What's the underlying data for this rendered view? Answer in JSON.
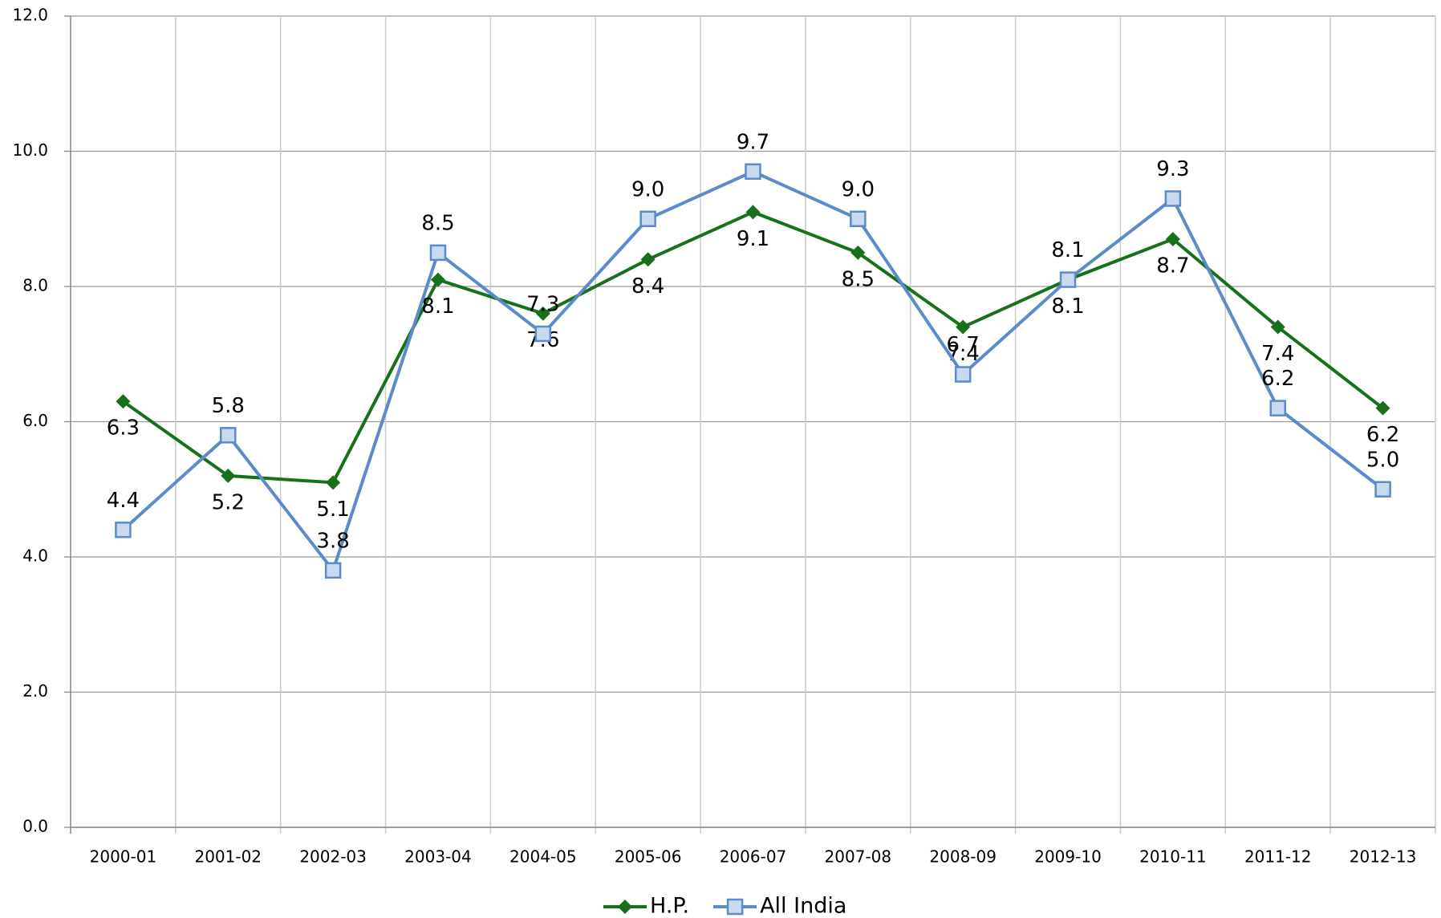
{
  "chart_data": {
    "type": "line",
    "categories": [
      "2000-01",
      "2001-02",
      "2002-03",
      "2003-04",
      "2004-05",
      "2005-06",
      "2006-07",
      "2007-08",
      "2008-09",
      "2009-10",
      "2010-11",
      "2011-12",
      "2012-13"
    ],
    "series": [
      {
        "name": "H.P.",
        "color": "#17701a",
        "marker": "diamond",
        "values": [
          6.3,
          5.2,
          5.1,
          8.1,
          7.6,
          8.4,
          9.1,
          8.5,
          7.4,
          8.1,
          8.7,
          7.4,
          6.2
        ],
        "value_labels": [
          "6.3",
          "5.2",
          "5.1",
          "8.1",
          "7.6",
          "8.4",
          "9.1",
          "8.5",
          "7.4",
          "8.1",
          "8.7",
          "7.4",
          "6.2"
        ]
      },
      {
        "name": "All India",
        "color": "#5b8bc8",
        "marker": "square",
        "values": [
          4.4,
          5.8,
          3.8,
          8.5,
          7.3,
          9.0,
          9.7,
          9.0,
          6.7,
          8.1,
          9.3,
          6.2,
          5.0
        ],
        "value_labels": [
          "4.4",
          "5.8",
          "3.8",
          "8.5",
          "7.3",
          "9.0",
          "9.7",
          "9.0",
          "6.7",
          "8.1",
          "9.3",
          "6.2",
          "5.0"
        ]
      }
    ],
    "ylim": [
      0,
      12
    ],
    "yticks": [
      {
        "value": 0,
        "label": "0.0"
      },
      {
        "value": 2,
        "label": "2.0"
      },
      {
        "value": 4,
        "label": "4.0"
      },
      {
        "value": 6,
        "label": "6.0"
      },
      {
        "value": 8,
        "label": "8.0"
      },
      {
        "value": 10,
        "label": "10.0"
      },
      {
        "value": 12,
        "label": "12.0"
      }
    ],
    "grid": true,
    "legend": "bottom"
  }
}
